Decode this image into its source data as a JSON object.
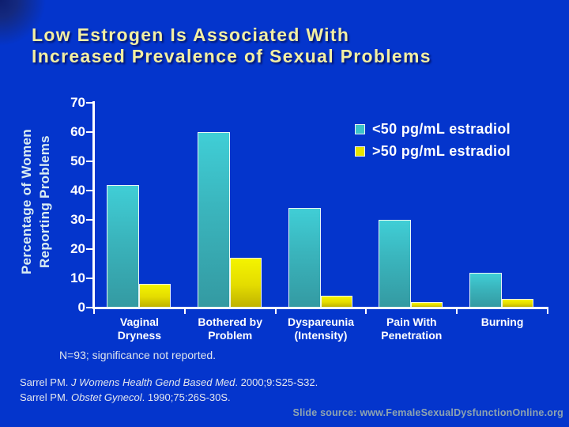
{
  "slide": {
    "title_line1": "Low Estrogen Is Associated With",
    "title_line2": "Increased Prevalence of Sexual Problems",
    "note": "N=93; significance not reported.",
    "references": [
      {
        "author": "Sarrel PM. ",
        "journal": "J Womens Health Gend Based Med",
        "rest": ". 2000;9:S25-S32."
      },
      {
        "author": "Sarrel PM. ",
        "journal": "Obstet Gynecol",
        "rest": ". 1990;75:26S-30S."
      }
    ],
    "source": "Slide source: www.FemaleSexualDysfunctionOnline.org"
  },
  "chart_data": {
    "type": "bar",
    "title": "Low Estrogen Is Associated With Increased Prevalence of Sexual Problems",
    "ylabel": "Percentage of Women\nReporting Problems",
    "xlabel": "",
    "categories": [
      "Vaginal\nDryness",
      "Bothered by\nProblem",
      "Dyspareunia\n(Intensity)",
      "Pain With\nPenetration",
      "Burning"
    ],
    "series": [
      {
        "name": "<50 pg/mL estradiol",
        "color": "#3cc3cb",
        "values": [
          42,
          60,
          34,
          30,
          12
        ]
      },
      {
        "name": ">50 pg/mL estradiol",
        "color": "#e9e400",
        "values": [
          8,
          17,
          4,
          2,
          3
        ]
      }
    ],
    "ylim": [
      0,
      70
    ],
    "ytick_step": 10,
    "grid": false,
    "legend_position": "top-right"
  },
  "colors": {
    "background": "#0435cc",
    "title_text": "#f3efa3",
    "axis_text": "#ffffff",
    "ylabel_text": "#d9ecf2",
    "teal_bar_top": "#40ced6",
    "teal_bar_bottom": "#349aa2",
    "yellow_bar_top": "#f4f400",
    "yellow_bar_bottom": "#bfb300",
    "source_text": "#8ea4b0"
  }
}
